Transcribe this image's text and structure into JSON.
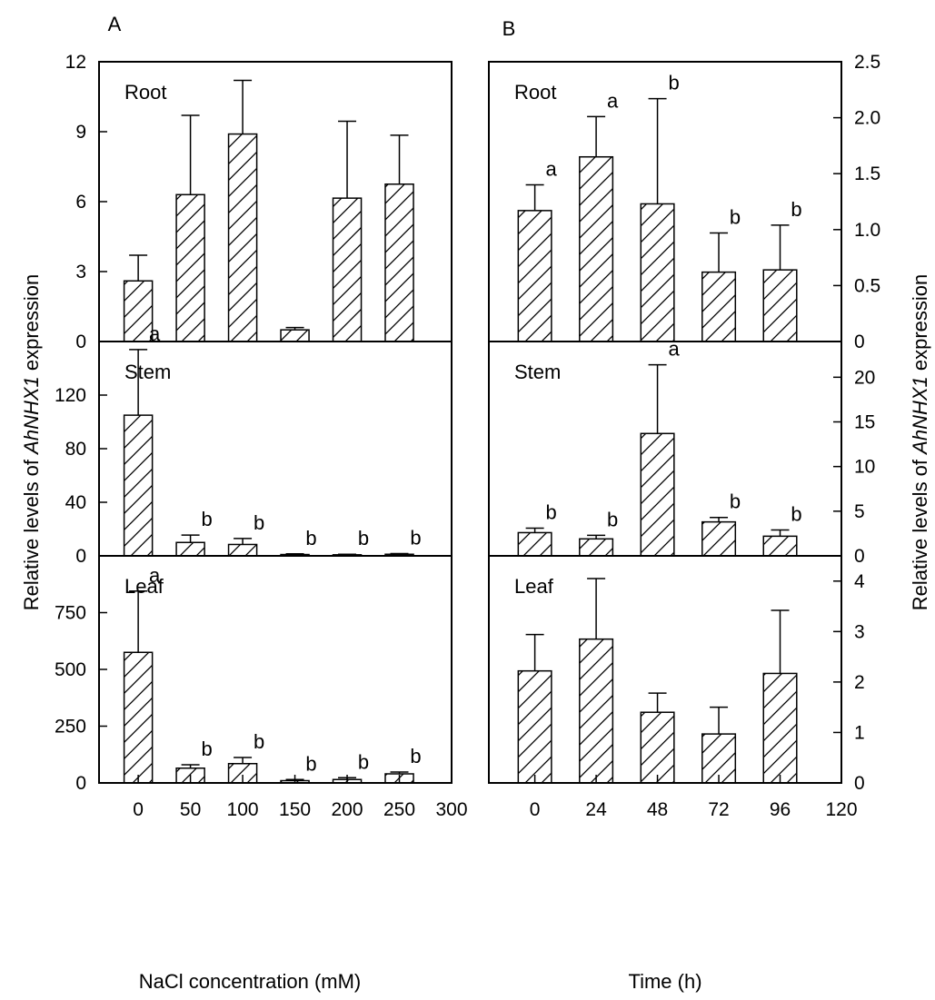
{
  "chart_data": {
    "type": "bar",
    "y_axis_label": {
      "prefix": "Relative levels of ",
      "gene": "AhNHX1",
      "suffix": " expression"
    },
    "panels": [
      {
        "letter": "A",
        "xlabel": "NaCl concentration (mM)",
        "x_ticks": [
          "0",
          "50",
          "100",
          "150",
          "200",
          "250",
          "300"
        ],
        "xlim": [
          -37.5,
          300
        ],
        "bar_width": 27,
        "y_axis_side": "left",
        "subplots": [
          {
            "title": "Root",
            "ylim": [
              0,
              12
            ],
            "y_ticks": [
              "0",
              "3",
              "6",
              "9",
              "12"
            ],
            "x": [
              0,
              50,
              100,
              150,
              200,
              250
            ],
            "values": [
              2.6,
              6.3,
              8.9,
              0.5,
              6.15,
              6.75
            ],
            "errors": [
              1.1,
              3.4,
              2.3,
              0.1,
              3.3,
              2.1
            ],
            "labels": [
              "",
              "",
              "",
              "",
              "",
              ""
            ]
          },
          {
            "title": "Stem",
            "ylim": [
              0,
              160
            ],
            "y_ticks": [
              "0",
              "40",
              "80",
              "120"
            ],
            "x": [
              0,
              50,
              100,
              150,
              200,
              250
            ],
            "values": [
              105,
              10,
              8.5,
              1,
              0.8,
              1.2
            ],
            "errors": [
              49,
              5.5,
              4.5,
              0.5,
              0.4,
              0.5
            ],
            "labels": [
              "a",
              "b",
              "b",
              "b",
              "b",
              "b"
            ]
          },
          {
            "title": "Leaf",
            "ylim": [
              0,
              1000
            ],
            "y_ticks": [
              "0",
              "250",
              "500",
              "750"
            ],
            "x": [
              0,
              50,
              100,
              150,
              200,
              250
            ],
            "values": [
              575,
              65,
              85,
              10,
              15,
              40
            ],
            "errors": [
              270,
              15,
              27,
              5,
              8,
              8
            ],
            "labels": [
              "a",
              "b",
              "b",
              "b",
              "b",
              "b"
            ]
          }
        ]
      },
      {
        "letter": "B",
        "xlabel": "Time (h)",
        "x_ticks": [
          "0",
          "24",
          "48",
          "72",
          "96",
          "120"
        ],
        "xlim": [
          -18,
          120
        ],
        "bar_width": 13,
        "y_axis_side": "right",
        "subplots": [
          {
            "title": "Root",
            "ylim": [
              0,
              2.5
            ],
            "y_ticks": [
              "0",
              "0.5",
              "1.0",
              "1.5",
              "2.0",
              "2.5"
            ],
            "x": [
              0,
              24,
              48,
              72,
              96
            ],
            "values": [
              1.17,
              1.65,
              1.23,
              0.62,
              0.64
            ],
            "errors": [
              0.23,
              0.36,
              0.94,
              0.35,
              0.4
            ],
            "labels": [
              "a",
              "a",
              "b",
              "b",
              "b"
            ]
          },
          {
            "title": "Stem",
            "ylim": [
              0,
              24
            ],
            "y_ticks": [
              "0",
              "5",
              "10",
              "15",
              "20"
            ],
            "x": [
              0,
              24,
              48,
              72,
              96
            ],
            "values": [
              2.6,
              1.9,
              13.7,
              3.8,
              2.2
            ],
            "errors": [
              0.5,
              0.4,
              7.7,
              0.5,
              0.7
            ],
            "labels": [
              "b",
              "b",
              "a",
              "b",
              "b"
            ]
          },
          {
            "title": "Leaf",
            "ylim": [
              0,
              4.5
            ],
            "y_ticks": [
              "0",
              "1",
              "2",
              "3",
              "4"
            ],
            "x": [
              0,
              24,
              48,
              72,
              96
            ],
            "values": [
              2.22,
              2.85,
              1.4,
              0.97,
              2.17
            ],
            "errors": [
              0.72,
              1.2,
              0.38,
              0.53,
              1.25
            ],
            "labels": [
              "",
              "",
              "",
              "",
              ""
            ]
          }
        ]
      }
    ],
    "hatch": "diagonal",
    "bar_fill": "#ffffff",
    "grid": false,
    "legend": "none"
  }
}
